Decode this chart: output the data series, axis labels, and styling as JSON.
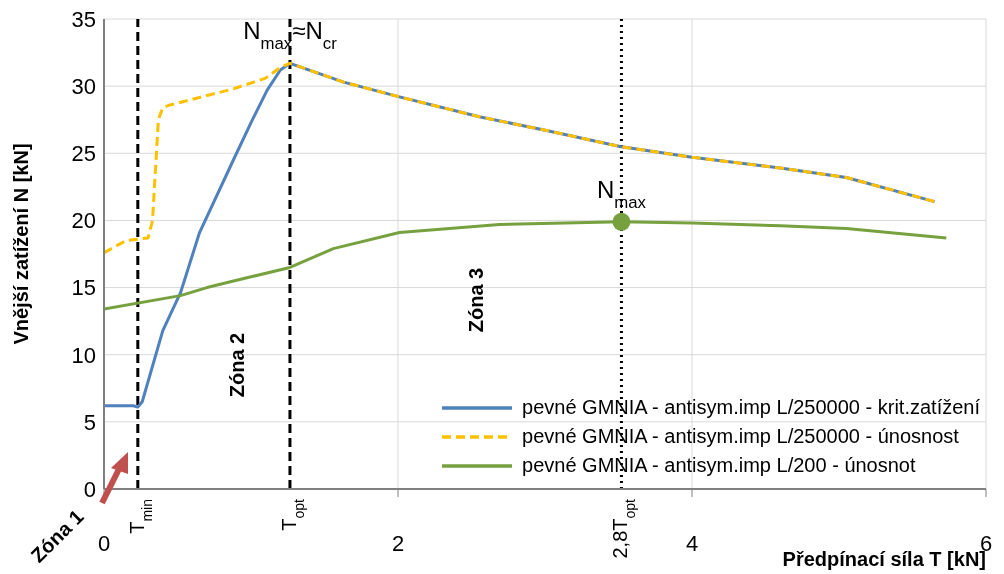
{
  "chart_data": {
    "type": "line",
    "xlabel": "Předpínací síla T [kN]",
    "ylabel": "Vnější zatížení N [kN]",
    "xlim": [
      0,
      6
    ],
    "ylim": [
      0,
      35
    ],
    "xticks": [
      0,
      2,
      4,
      6
    ],
    "yticks": [
      0,
      5,
      10,
      15,
      20,
      25,
      30,
      35
    ],
    "grid": true,
    "legend": "bottom right",
    "series": [
      {
        "name": "pevné GMNIA - antisym.imp L/250000 - krit.zatížení",
        "color": "#4f81bd",
        "line_style": "solid",
        "x": [
          0,
          0.2,
          0.23,
          0.26,
          0.4,
          0.52,
          0.65,
          0.88,
          1.01,
          1.11,
          1.2,
          1.265,
          1.63,
          2.01,
          2.56,
          3.01,
          3.51,
          4.0,
          4.6,
          5.05,
          5.65
        ],
        "values": [
          6.2,
          6.2,
          6.1,
          6.5,
          11.8,
          14.6,
          19.1,
          24.5,
          27.5,
          29.7,
          31.2,
          31.7,
          30.3,
          29.2,
          27.7,
          26.7,
          25.5,
          24.7,
          23.9,
          23.2,
          21.4
        ]
      },
      {
        "name": "pevné GMNIA - antisym.imp L/250000 - únosnost",
        "color": "#ffc000",
        "line_style": "dashed",
        "x": [
          0,
          0.15,
          0.3,
          0.33,
          0.37,
          0.4,
          0.45,
          0.88,
          1.1,
          1.2,
          1.265,
          1.63,
          2.01,
          2.56,
          3.01,
          3.51,
          4.0,
          4.6,
          5.05,
          5.65
        ],
        "values": [
          17.6,
          18.5,
          18.7,
          20,
          27.5,
          28.4,
          28.6,
          29.8,
          30.6,
          31.4,
          31.7,
          30.3,
          29.2,
          27.7,
          26.7,
          25.5,
          24.7,
          23.9,
          23.2,
          21.4
        ]
      },
      {
        "name": "pevné GMNIA - antisym.imp L/200 - únosnot",
        "color": "#77a13f",
        "line_style": "solid",
        "x": [
          0,
          0.52,
          0.7,
          1.0,
          1.265,
          1.56,
          2.01,
          2.69,
          3.52,
          4.0,
          4.6,
          5.05,
          5.73
        ],
        "values": [
          13.4,
          14.4,
          15.0,
          15.8,
          16.5,
          17.9,
          19.1,
          19.7,
          19.9,
          19.8,
          19.6,
          19.4,
          18.7
        ]
      },
      {
        "type": "scatter",
        "color": "#77a13f",
        "marker": "circle",
        "x": [
          3.52
        ],
        "values": [
          19.9
        ]
      }
    ],
    "ref_lines": [
      {
        "axis": "x",
        "value": 0.23,
        "label": "T$_{min}$",
        "color": "#000000",
        "line_style": "dashed"
      },
      {
        "axis": "x",
        "value": 1.265,
        "label": "T$_{opt}$",
        "color": "#000000",
        "line_style": "dashed"
      },
      {
        "axis": "x",
        "value": 3.52,
        "label": "2,8T$_{opt}$",
        "color": "#000000",
        "line_style": "dotted"
      }
    ],
    "annotations": [
      {
        "text": "N$_{max}$≈N$_{cr}$",
        "x": 1.265,
        "y": 31.7
      },
      {
        "text": "N$_{max}$",
        "x": 3.52,
        "y": 19.9
      },
      "Zóna 1",
      "Zóna 2",
      "Zóna 3"
    ]
  }
}
